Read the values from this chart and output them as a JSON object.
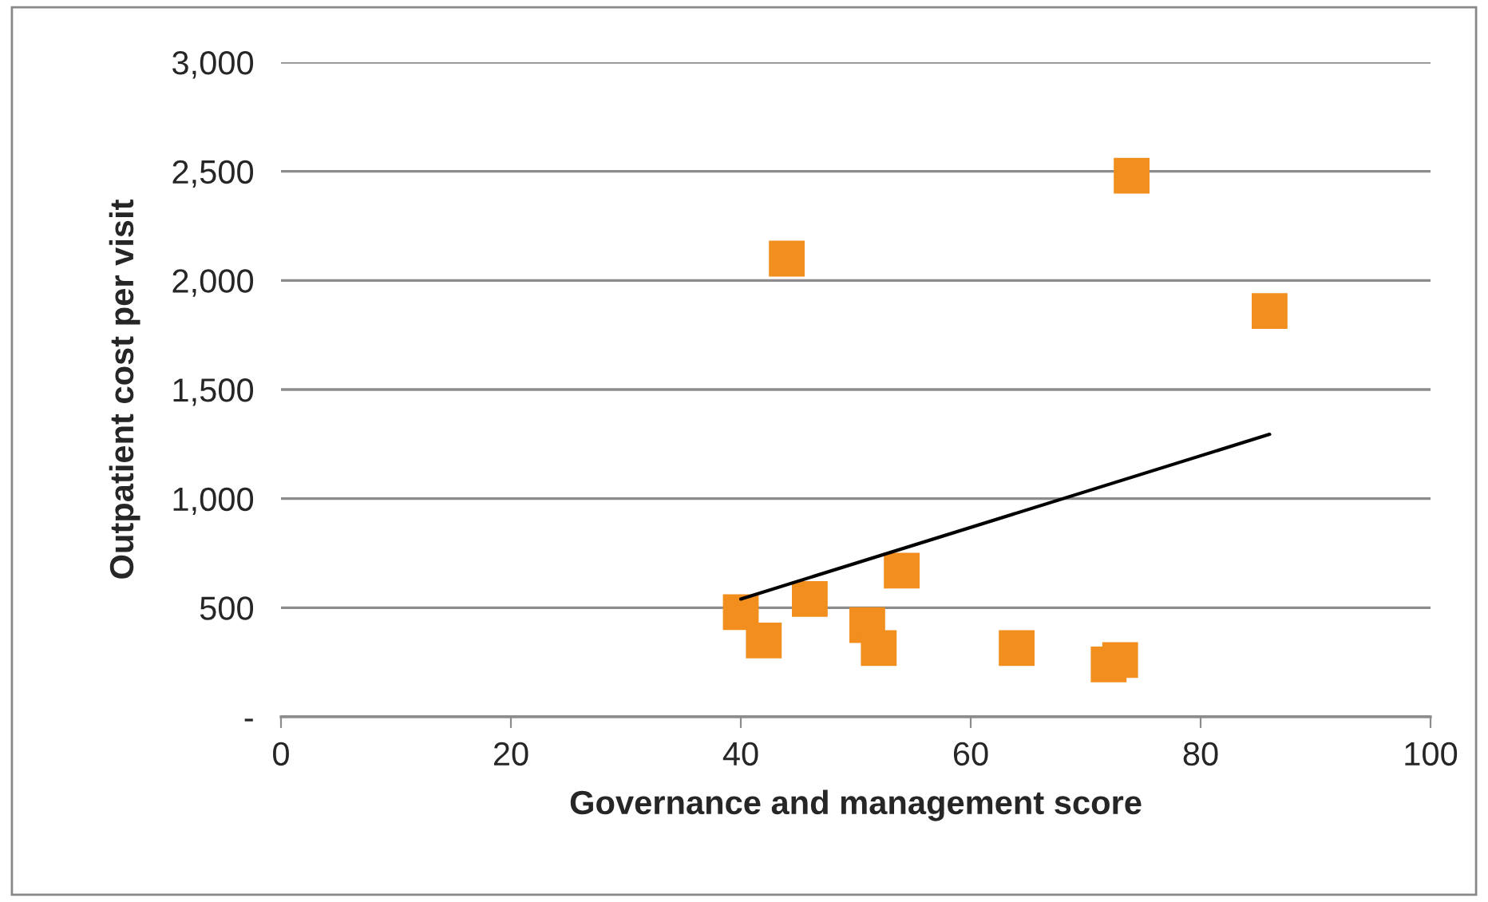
{
  "chart_data": {
    "type": "scatter",
    "xlabel": "Governance and management score",
    "ylabel": "Outpatient cost per visit",
    "xlim": [
      0,
      100
    ],
    "xticks": [
      0,
      20,
      40,
      60,
      80,
      100
    ],
    "ylim": [
      0,
      3000
    ],
    "yticks": [
      {
        "value": 0,
        "label": "-"
      },
      {
        "value": 500,
        "label": "500"
      },
      {
        "value": 1000,
        "label": "1,000"
      },
      {
        "value": 1500,
        "label": "1,500"
      },
      {
        "value": 2000,
        "label": "2,000"
      },
      {
        "value": 2500,
        "label": "2,500"
      },
      {
        "value": 3000,
        "label": "3,000"
      }
    ],
    "grid": "y",
    "series": [
      {
        "marker": "square",
        "color": "#f28e1e",
        "x": [
          40,
          42,
          44,
          46,
          51,
          52,
          54,
          64,
          72,
          73,
          74,
          86
        ],
        "values": [
          480,
          350,
          2100,
          540,
          420,
          315,
          670,
          315,
          240,
          260,
          2480,
          1860
        ]
      },
      {
        "type": "line",
        "color": "#000000",
        "x": [
          40,
          86
        ],
        "values": [
          540,
          1295
        ]
      }
    ]
  }
}
